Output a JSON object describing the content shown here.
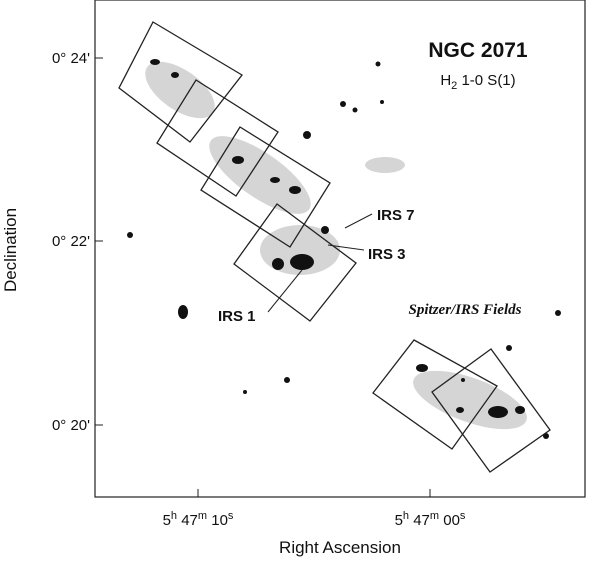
{
  "figure": {
    "title": "NGC 2071",
    "subtitle": {
      "base": "H",
      "sub": "2",
      "rest": " 1-0 S(1)"
    },
    "x_label": "Right Ascension",
    "y_label": "Declination",
    "y_ticks": [
      "0° 24'",
      "0° 22'",
      "0° 20'"
    ],
    "x_ticks": [
      {
        "h": "5",
        "hu": "h",
        "m": " 47",
        "mu": "m",
        "s": " 10",
        "su": "s"
      },
      {
        "h": "5",
        "hu": "h",
        "m": " 47",
        "mu": "m",
        "s": " 00",
        "su": "s"
      }
    ],
    "annotations": [
      "IRS 7",
      "IRS 3",
      "IRS 1"
    ],
    "fields_label": "Spitzer/IRS Fields"
  }
}
